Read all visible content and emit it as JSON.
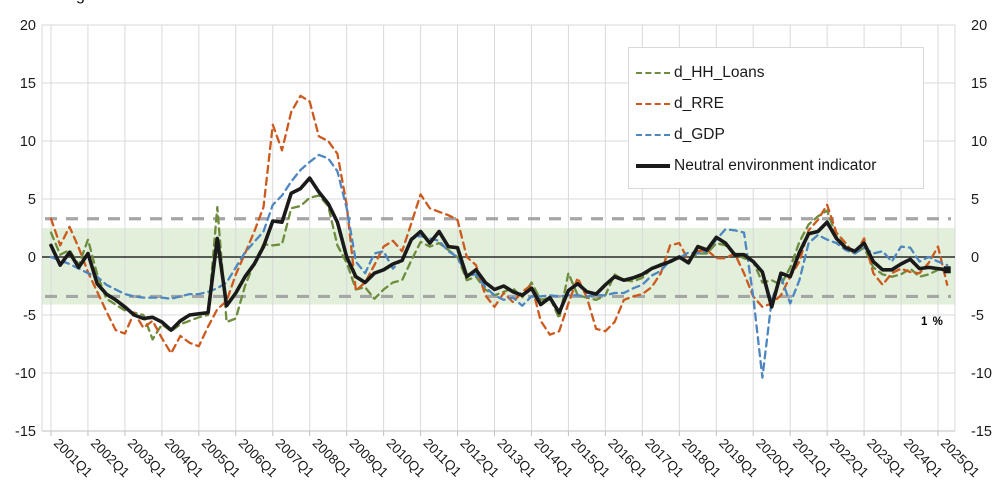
{
  "title_fragment": "g",
  "annotation": {
    "text": "1 %"
  },
  "chart_data": {
    "type": "line",
    "frequency": "quarterly",
    "start_period": "2001Q1",
    "end_period": "2025Q2",
    "x_tick_labels": [
      "2001Q1",
      "2002Q1",
      "2003Q1",
      "2004Q1",
      "2005Q1",
      "2006Q1",
      "2007Q1",
      "2008Q1",
      "2009Q1",
      "2010Q1",
      "2011Q1",
      "2012Q1",
      "2013Q1",
      "2014Q1",
      "2015Q1",
      "2016Q1",
      "2017Q1",
      "2018Q1",
      "2019Q1",
      "2020Q1",
      "2021Q1",
      "2022Q1",
      "2023Q1",
      "2024Q1",
      "2025Q1"
    ],
    "ylim": [
      -15,
      20
    ],
    "yticks": [
      20,
      15,
      10,
      5,
      0,
      -5,
      -10,
      -15
    ],
    "grid": true,
    "legend_position": "top-right",
    "reference": {
      "zero_line": 0,
      "upper_dashed": 3.3,
      "lower_dashed": -3.4,
      "band_top": 2.5,
      "band_bottom": -4.1,
      "band_color": "#e2efda",
      "dashed_color": "#a6a6a6",
      "grid_color": "#d9d9d9"
    },
    "series": [
      {
        "name": "d_HH_Loans",
        "color": "#6d8c3d",
        "style": "dashed",
        "width": 2.3,
        "values": [
          2.1,
          0.2,
          0.6,
          -0.7,
          1.5,
          -1.5,
          -3.6,
          -4.1,
          -4.6,
          -4.8,
          -5.0,
          -7.1,
          -5.8,
          -6.4,
          -5.8,
          -5.5,
          -5.2,
          -5.0,
          4.3,
          -5.6,
          -5.3,
          -2.5,
          -0.5,
          1.1,
          1.0,
          1.1,
          4.2,
          4.4,
          5.1,
          5.3,
          4.4,
          1.0,
          -0.5,
          -2.8,
          -2.6,
          -3.6,
          -2.8,
          -2.2,
          -2.0,
          -0.3,
          1.3,
          0.9,
          1.2,
          0.6,
          0.0,
          -2.0,
          -1.7,
          -2.8,
          -3.3,
          -3.0,
          -2.7,
          -3.5,
          -2.2,
          -3.7,
          -3.5,
          -5.3,
          -1.4,
          -3.3,
          -3.5,
          -3.7,
          -3.3,
          -1.5,
          -2.0,
          -2.1,
          -1.8,
          -1.0,
          -0.6,
          -0.4,
          -0.1,
          -0.3,
          0.3,
          0.3,
          1.2,
          1.0,
          0.3,
          -0.1,
          -0.4,
          -2.2,
          -2.0,
          -2.4,
          -0.9,
          1.3,
          2.8,
          3.5,
          4.0,
          1.8,
          0.9,
          0.3,
          0.8,
          -0.9,
          -1.5,
          -1.7,
          -1.5,
          -1.0,
          -1.7,
          -1.5,
          -1.1,
          -1.3
        ]
      },
      {
        "name": "d_RRE",
        "color": "#cc5a1e",
        "style": "dashed",
        "width": 2.3,
        "values": [
          3.3,
          1.0,
          2.6,
          0.8,
          -1.3,
          -3.0,
          -4.7,
          -6.3,
          -6.6,
          -4.8,
          -6.1,
          -5.5,
          -7.0,
          -8.3,
          -6.8,
          -7.4,
          -7.7,
          -6.0,
          -4.5,
          -3.8,
          -1.5,
          0.3,
          2.2,
          4.3,
          11.4,
          9.2,
          12.5,
          13.9,
          13.4,
          10.4,
          10.0,
          8.9,
          4.5,
          -2.9,
          -2.2,
          -0.7,
          0.9,
          1.4,
          0.5,
          2.9,
          5.4,
          4.2,
          3.9,
          3.6,
          3.2,
          0.0,
          -0.7,
          -3.3,
          -4.3,
          -3.1,
          -3.9,
          -3.0,
          -2.4,
          -5.5,
          -6.7,
          -6.4,
          -4.0,
          -1.8,
          -3.5,
          -6.2,
          -6.4,
          -5.6,
          -3.7,
          -3.4,
          -3.2,
          -2.6,
          -1.4,
          1.0,
          1.2,
          -0.3,
          0.5,
          0.6,
          -0.1,
          -0.1,
          0.3,
          -1.4,
          -3.4,
          -4.3,
          -4.0,
          -3.3,
          -1.7,
          -0.4,
          2.3,
          3.2,
          4.5,
          2.1,
          1.2,
          0.2,
          1.6,
          -1.4,
          -2.4,
          -1.4,
          -1.0,
          -1.3,
          -1.4,
          -0.5,
          0.9,
          -2.4
        ]
      },
      {
        "name": "d_GDP",
        "color": "#4e86c0",
        "style": "dashed",
        "width": 2.3,
        "values": [
          0.0,
          -0.3,
          -0.6,
          -1.0,
          -1.4,
          -1.7,
          -2.4,
          -2.8,
          -3.2,
          -3.4,
          -3.5,
          -3.5,
          -3.5,
          -3.6,
          -3.4,
          -3.2,
          -3.2,
          -3.0,
          -2.7,
          -2.2,
          -0.9,
          0.4,
          1.3,
          2.2,
          4.5,
          5.3,
          6.5,
          7.5,
          8.2,
          8.8,
          8.5,
          7.4,
          4.2,
          -0.4,
          -1.4,
          0.3,
          0.5,
          -1.0,
          -0.2,
          1.6,
          1.8,
          1.6,
          1.4,
          0.5,
          0.0,
          -1.6,
          -1.5,
          -2.6,
          -3.3,
          -3.7,
          -3.5,
          -4.2,
          -3.4,
          -3.4,
          -3.3,
          -3.4,
          -3.3,
          -3.3,
          -3.4,
          -3.3,
          -3.3,
          -3.1,
          -3.1,
          -2.7,
          -2.4,
          -1.6,
          -1.2,
          -0.3,
          -0.1,
          0.4,
          0.3,
          0.5,
          1.5,
          2.4,
          2.3,
          2.1,
          -3.4,
          -10.4,
          -3.7,
          -1.7,
          -4.0,
          -2.0,
          1.2,
          1.9,
          1.5,
          1.2,
          0.6,
          0.3,
          0.8,
          0.3,
          0.5,
          -0.4,
          0.9,
          0.8,
          -0.4,
          0.0,
          -0.4,
          -0.7
        ]
      },
      {
        "name": "Neutral environment indicator",
        "color": "#1a1a1a",
        "style": "solid",
        "width": 3.6,
        "end_marker": true,
        "values": [
          1.0,
          -0.7,
          0.4,
          -0.9,
          0.3,
          -2.3,
          -3.2,
          -3.7,
          -4.3,
          -5.0,
          -5.3,
          -5.2,
          -5.6,
          -6.3,
          -5.5,
          -5.0,
          -4.9,
          -4.8,
          1.6,
          -4.2,
          -3.1,
          -1.7,
          -0.6,
          0.9,
          3.1,
          3.0,
          5.5,
          5.9,
          6.8,
          5.6,
          4.6,
          3.0,
          0.0,
          -1.7,
          -2.2,
          -1.4,
          -1.1,
          -0.6,
          -0.3,
          1.5,
          2.2,
          1.2,
          2.2,
          0.9,
          0.8,
          -1.7,
          -1.1,
          -2.2,
          -2.8,
          -2.5,
          -3.0,
          -3.3,
          -2.7,
          -4.1,
          -3.5,
          -4.8,
          -2.9,
          -2.3,
          -3.0,
          -3.2,
          -2.4,
          -1.7,
          -2.0,
          -1.8,
          -1.5,
          -1.0,
          -0.7,
          -0.4,
          0.0,
          -0.5,
          0.9,
          0.6,
          1.7,
          1.2,
          0.2,
          0.2,
          -0.4,
          -1.3,
          -4.3,
          -1.4,
          -1.7,
          0.4,
          2.0,
          2.2,
          3.0,
          1.6,
          0.8,
          0.5,
          1.2,
          -0.4,
          -1.1,
          -1.1,
          -0.6,
          -0.2,
          -1.0,
          -0.9,
          -1.0,
          -1.1
        ]
      }
    ]
  }
}
